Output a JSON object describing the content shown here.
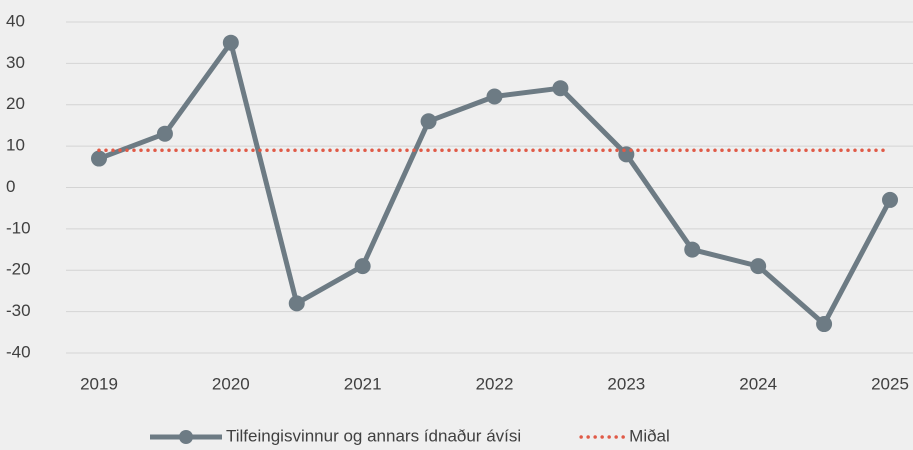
{
  "chart_data": {
    "type": "line",
    "x": [
      2019,
      2019.5,
      2020,
      2020.5,
      2021,
      2021.5,
      2022,
      2022.5,
      2023,
      2023.5,
      2024,
      2024.5,
      2025
    ],
    "series": [
      {
        "name": "Tilfeingisvinnur og annars ídnaður ávísi",
        "color": "#6d7b84",
        "style": "solid-marker",
        "values": [
          7,
          13,
          35,
          -28,
          -19,
          16,
          22,
          24,
          8,
          -15,
          -19,
          -33,
          -3
        ]
      },
      {
        "name": "Miðal",
        "color": "#e05a47",
        "style": "dotted",
        "values": [
          9,
          9,
          9,
          9,
          9,
          9,
          9,
          9,
          9,
          9,
          9,
          9,
          9
        ]
      }
    ],
    "xlim": [
      2019,
      2025
    ],
    "xticks": [
      2019,
      2020,
      2021,
      2022,
      2023,
      2024,
      2025
    ],
    "ylim": [
      -40,
      40
    ],
    "yticks": [
      -40,
      -30,
      -20,
      -10,
      0,
      10,
      20,
      30,
      40
    ],
    "grid": true,
    "legend": "bottom"
  }
}
